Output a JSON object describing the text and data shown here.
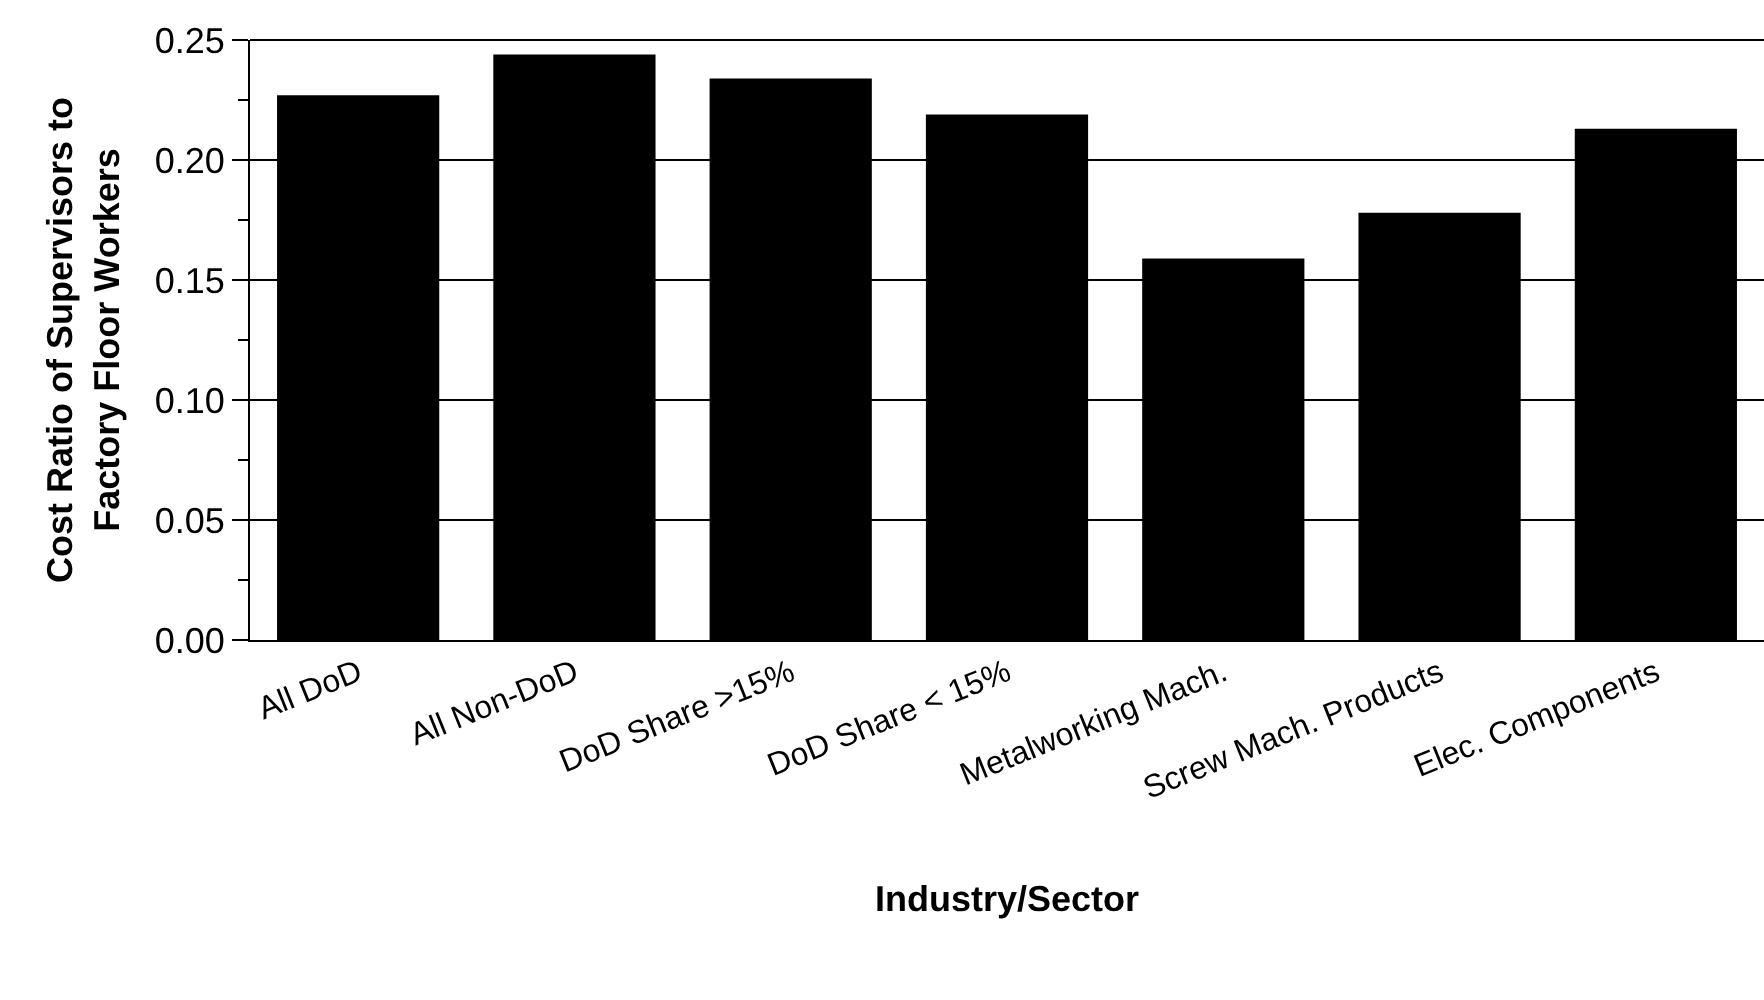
{
  "chart_data": {
    "type": "bar",
    "xlabel": "Industry/Sector",
    "ylabel": "Cost Ratio of Supervisors to\nFactory Floor Workers",
    "categories": [
      "All DoD",
      "All Non-DoD",
      "DoD Share >15%",
      "DoD Share < 15%",
      "Metalworking Mach.",
      "Screw Mach. Products",
      "Elec. Components"
    ],
    "values": [
      0.227,
      0.244,
      0.234,
      0.219,
      0.159,
      0.178,
      0.213
    ],
    "color": "#000000",
    "ylim": [
      0,
      0.25
    ],
    "yticks": [
      {
        "value": 0,
        "label": "0.00"
      },
      {
        "value": 0.05,
        "label": "0.05"
      },
      {
        "value": 0.1,
        "label": "0.10"
      },
      {
        "value": 0.15,
        "label": "0.15"
      },
      {
        "value": 0.2,
        "label": "0.20"
      },
      {
        "value": 0.25,
        "label": "0.25"
      }
    ],
    "grid": "y"
  }
}
